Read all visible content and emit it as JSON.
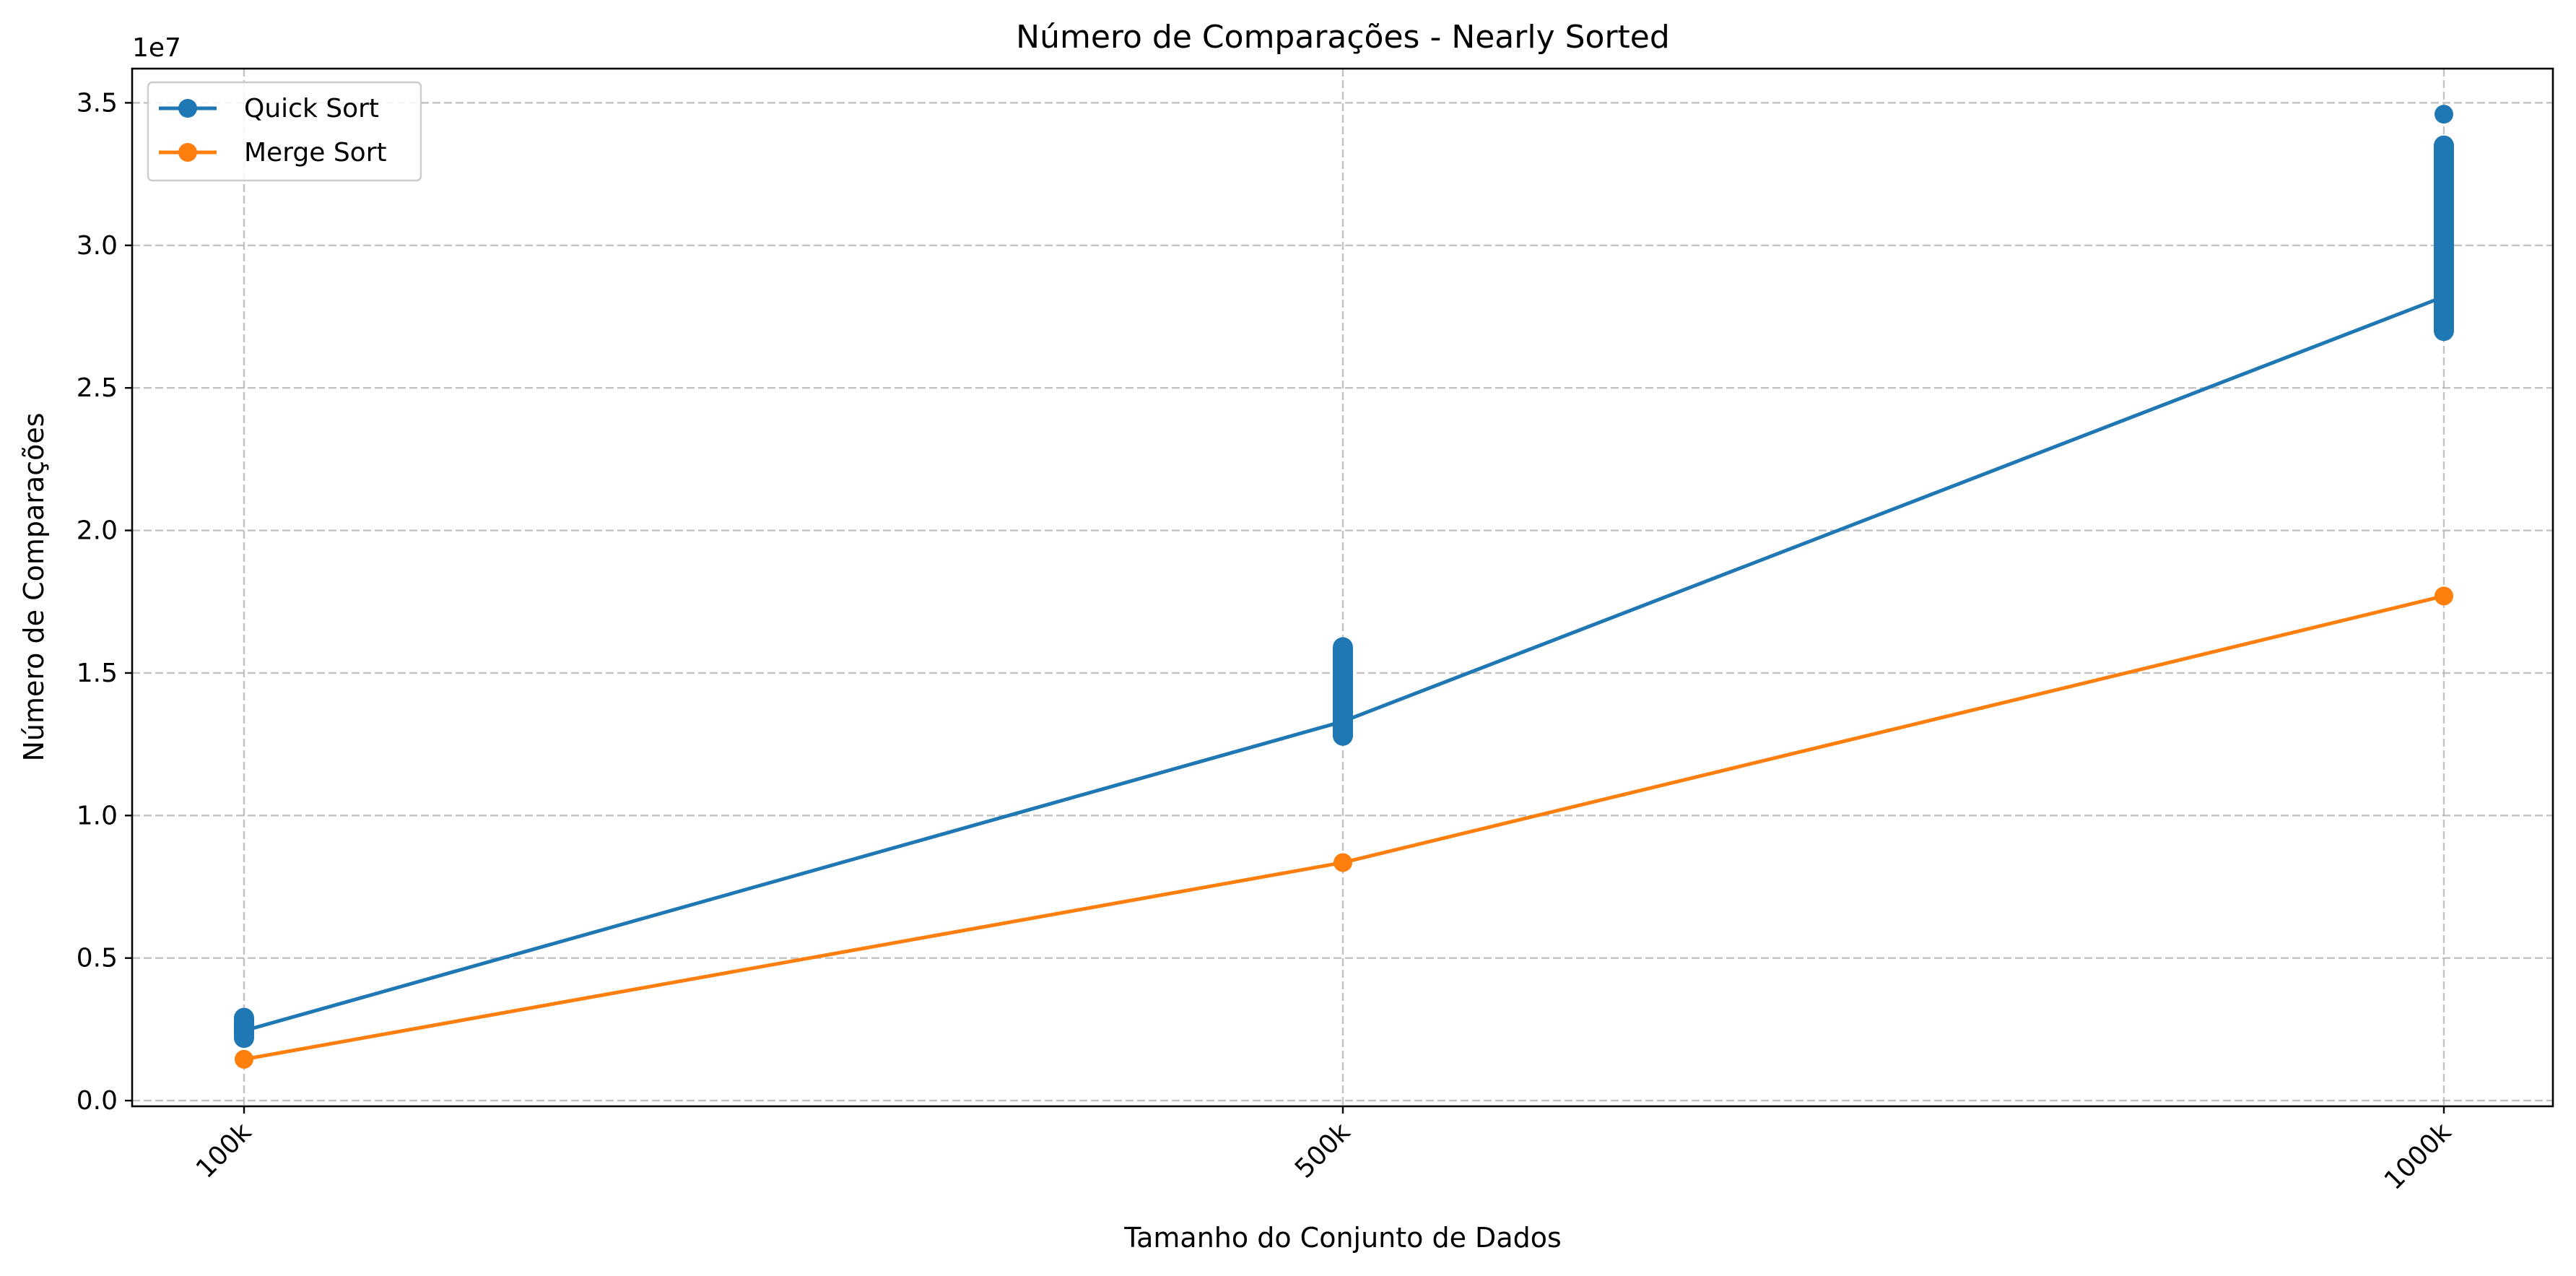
{
  "chart_data": {
    "type": "line",
    "title": "Número de Comparações - Nearly Sorted",
    "xlabel": "Tamanho do Conjunto de Dados",
    "ylabel": "Número de Comparações",
    "y_offset_label": "1e7",
    "categories": [
      "100k",
      "500k",
      "1000k"
    ],
    "ylim": [
      -0.02,
      3.62
    ],
    "yticks": [
      0.0,
      0.5,
      1.0,
      1.5,
      2.0,
      2.5,
      3.0,
      3.5
    ],
    "ytick_labels": [
      "0.0",
      "0.5",
      "1.0",
      "1.5",
      "2.0",
      "2.5",
      "3.0",
      "3.5"
    ],
    "grid": true,
    "legend_position": "top-left",
    "series": [
      {
        "name": "Quick Sort",
        "color": "#1f77b4",
        "marker": "circle",
        "values": [
          0.245,
          1.33,
          2.82
        ],
        "spread": [
          {
            "category": "100k",
            "min": 0.22,
            "max": 0.29,
            "extremes": [
              0.29
            ]
          },
          {
            "category": "500k",
            "min": 1.28,
            "max": 1.59,
            "extremes": [
              1.59
            ]
          },
          {
            "category": "1000k",
            "min": 2.7,
            "max": 3.35,
            "extremes": [
              3.46
            ]
          }
        ]
      },
      {
        "name": "Merge Sort",
        "color": "#ff7f0e",
        "marker": "circle",
        "values": [
          0.145,
          0.835,
          1.77
        ],
        "spread": []
      }
    ]
  }
}
